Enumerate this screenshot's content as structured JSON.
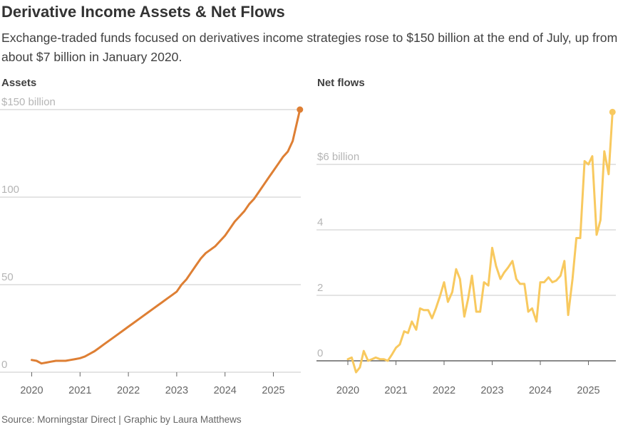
{
  "title": "Derivative Income Assets & Net Flows",
  "subtitle": "Exchange-traded funds focused on derivatives income strategies rose to $150 billion at the end of July, up from about $7 billion in January 2020.",
  "source": "Source: Morningstar Direct | Graphic by Laura Matthews",
  "colors": {
    "assets": "#DE7F34",
    "flows": "#F8C95F"
  },
  "chart_data": [
    {
      "type": "line",
      "title": "Assets",
      "ylabel": "$ billion",
      "ylim": [
        0,
        150
      ],
      "yticks": [
        0,
        50,
        100,
        150
      ],
      "ytick_labels": [
        "0",
        "50",
        "100",
        "$150 billion"
      ],
      "xticks": [
        2020,
        2021,
        2022,
        2023,
        2024,
        2025
      ],
      "xtick_labels": [
        "2020",
        "2021",
        "2022",
        "2023",
        "2024",
        "2025"
      ],
      "xlim": [
        2020,
        2025.6
      ],
      "end_marker": true,
      "x": [
        2020.0,
        2020.1,
        2020.2,
        2020.3,
        2020.4,
        2020.5,
        2020.6,
        2020.7,
        2020.8,
        2020.9,
        2021.0,
        2021.1,
        2021.2,
        2021.3,
        2021.4,
        2021.5,
        2021.6,
        2021.7,
        2021.8,
        2021.9,
        2022.0,
        2022.1,
        2022.2,
        2022.3,
        2022.4,
        2022.5,
        2022.6,
        2022.7,
        2022.8,
        2022.9,
        2023.0,
        2023.1,
        2023.2,
        2023.3,
        2023.4,
        2023.5,
        2023.6,
        2023.7,
        2023.8,
        2023.9,
        2024.0,
        2024.1,
        2024.2,
        2024.3,
        2024.4,
        2024.5,
        2024.6,
        2024.7,
        2024.8,
        2024.9,
        2025.0,
        2025.1,
        2025.2,
        2025.3,
        2025.4,
        2025.55
      ],
      "values": [
        7,
        6.5,
        5,
        5.5,
        6,
        6.5,
        6.5,
        6.5,
        7,
        7.5,
        8,
        9,
        10.5,
        12,
        14,
        16,
        18,
        20,
        22,
        24,
        26,
        28,
        30,
        32,
        34,
        36,
        38,
        40,
        42,
        44,
        46,
        50,
        53,
        57,
        61,
        65,
        68,
        70,
        72,
        75,
        78,
        82,
        86,
        89,
        92,
        96,
        99,
        103,
        107,
        111,
        115,
        119,
        123,
        126,
        132,
        150
      ]
    },
    {
      "type": "line",
      "title": "Net flows",
      "ylabel": "$ billion",
      "ylim": [
        -0.5,
        7.8
      ],
      "yticks": [
        0,
        2,
        4,
        6
      ],
      "ytick_labels": [
        "0",
        "2",
        "4",
        "$6 billion"
      ],
      "xticks": [
        2020,
        2021,
        2022,
        2023,
        2024,
        2025
      ],
      "xtick_labels": [
        "2020",
        "2021",
        "2022",
        "2023",
        "2024",
        "2025"
      ],
      "xlim": [
        2020,
        2025.6
      ],
      "end_marker": true,
      "x": [
        2020.0,
        2020.08,
        2020.17,
        2020.25,
        2020.33,
        2020.42,
        2020.5,
        2020.58,
        2020.67,
        2020.75,
        2020.83,
        2020.92,
        2021.0,
        2021.08,
        2021.17,
        2021.25,
        2021.33,
        2021.42,
        2021.5,
        2021.58,
        2021.67,
        2021.75,
        2021.83,
        2021.92,
        2022.0,
        2022.08,
        2022.17,
        2022.25,
        2022.33,
        2022.42,
        2022.5,
        2022.58,
        2022.67,
        2022.75,
        2022.83,
        2022.92,
        2023.0,
        2023.08,
        2023.17,
        2023.25,
        2023.33,
        2023.42,
        2023.5,
        2023.58,
        2023.67,
        2023.75,
        2023.83,
        2023.92,
        2024.0,
        2024.08,
        2024.17,
        2024.25,
        2024.33,
        2024.42,
        2024.5,
        2024.58,
        2024.67,
        2024.75,
        2024.83,
        2024.92,
        2025.0,
        2025.08,
        2025.17,
        2025.25,
        2025.33,
        2025.42,
        2025.5
      ],
      "values": [
        0.05,
        0.1,
        -0.35,
        -0.2,
        0.3,
        0.0,
        0.05,
        0.1,
        0.05,
        0.05,
        0.0,
        0.2,
        0.4,
        0.5,
        0.9,
        0.85,
        1.2,
        0.95,
        1.6,
        1.55,
        1.55,
        1.3,
        1.6,
        2.0,
        2.4,
        1.8,
        2.1,
        2.8,
        2.5,
        1.35,
        1.9,
        2.6,
        1.5,
        1.5,
        2.4,
        2.3,
        3.45,
        2.9,
        2.5,
        2.7,
        2.85,
        3.05,
        2.5,
        2.35,
        2.35,
        1.5,
        1.6,
        1.2,
        2.4,
        2.4,
        2.55,
        2.4,
        2.45,
        2.6,
        3.05,
        1.4,
        2.5,
        3.75,
        3.75,
        6.1,
        6.0,
        6.25,
        3.85,
        4.3,
        6.4,
        5.7,
        7.6
      ]
    }
  ]
}
